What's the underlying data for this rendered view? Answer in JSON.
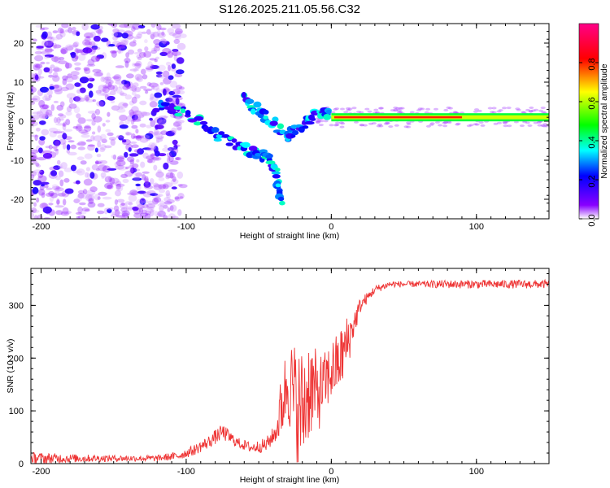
{
  "figure": {
    "title": "S126.2025.211.05.56.C32"
  },
  "chart_data": [
    {
      "type": "heatmap",
      "panel": "spectrogram",
      "xlabel": "Height of straight line (km)",
      "ylabel": "Frequency (Hz)",
      "xlim": [
        -207,
        150
      ],
      "ylim": [
        -25,
        25
      ],
      "xticks": [
        -200,
        -100,
        0,
        100
      ],
      "yticks": [
        -20,
        -10,
        0,
        10,
        20
      ],
      "colorbar": {
        "label": "Normalized spectral amplitude",
        "range": [
          0,
          1
        ],
        "ticks": [
          "0.0",
          "0.2",
          "0.4",
          "0.6",
          "0.8"
        ],
        "colormap": [
          "#ffffff",
          "#8800ff",
          "#0000ff",
          "#00ffff",
          "#00ff00",
          "#ffff00",
          "#ff0000",
          "#ff0088"
        ]
      },
      "features": [
        {
          "name": "noise field",
          "x_range": [
            -207,
            -110
          ],
          "freq_range": [
            -25,
            25
          ],
          "amplitude": 0.1
        },
        {
          "name": "descending track",
          "points": [
            [
              -120,
              4
            ],
            [
              -100,
              2
            ],
            [
              -80,
              -3
            ],
            [
              -60,
              -7
            ],
            [
              -45,
              -9
            ],
            [
              -38,
              -12
            ],
            [
              -35,
              -21
            ]
          ]
        },
        {
          "name": "secondary track",
          "points": [
            [
              -60,
              6
            ],
            [
              -45,
              1
            ],
            [
              -30,
              -4
            ],
            [
              -20,
              -1
            ],
            [
              -10,
              2
            ],
            [
              0,
              2
            ]
          ]
        },
        {
          "name": "carrier line",
          "x_range": [
            0,
            150
          ],
          "freq_hz": 1,
          "amplitude": 0.8
        }
      ]
    },
    {
      "type": "line",
      "panel": "snr",
      "xlabel": "Height of straight line (km)",
      "ylabel": "SNR (10 * v/v)",
      "xlim": [
        -207,
        150
      ],
      "ylim": [
        0,
        370
      ],
      "xticks": [
        -200,
        -100,
        0,
        100
      ],
      "yticks": [
        0,
        100,
        200,
        300
      ],
      "color": "#ee3333",
      "series": [
        {
          "x": [
            -207,
            -180,
            -150,
            -120,
            -105,
            -95,
            -85,
            -75,
            -65,
            -55,
            -45,
            -38,
            -35,
            -30,
            -25,
            -20,
            -15,
            -10,
            -5,
            0,
            5,
            10,
            15,
            20,
            25,
            30,
            40,
            60,
            80,
            100,
            120,
            150
          ],
          "y": [
            10,
            10,
            10,
            10,
            15,
            25,
            40,
            60,
            40,
            30,
            35,
            60,
            100,
            160,
            120,
            100,
            150,
            130,
            150,
            175,
            190,
            220,
            260,
            300,
            315,
            330,
            340,
            340,
            340,
            340,
            340,
            340
          ],
          "noise": [
            12,
            8,
            6,
            6,
            8,
            10,
            12,
            15,
            10,
            10,
            14,
            18,
            60,
            80,
            110,
            120,
            100,
            80,
            60,
            60,
            60,
            60,
            30,
            15,
            10,
            8,
            6,
            6,
            8,
            8,
            8,
            8
          ]
        }
      ]
    }
  ]
}
